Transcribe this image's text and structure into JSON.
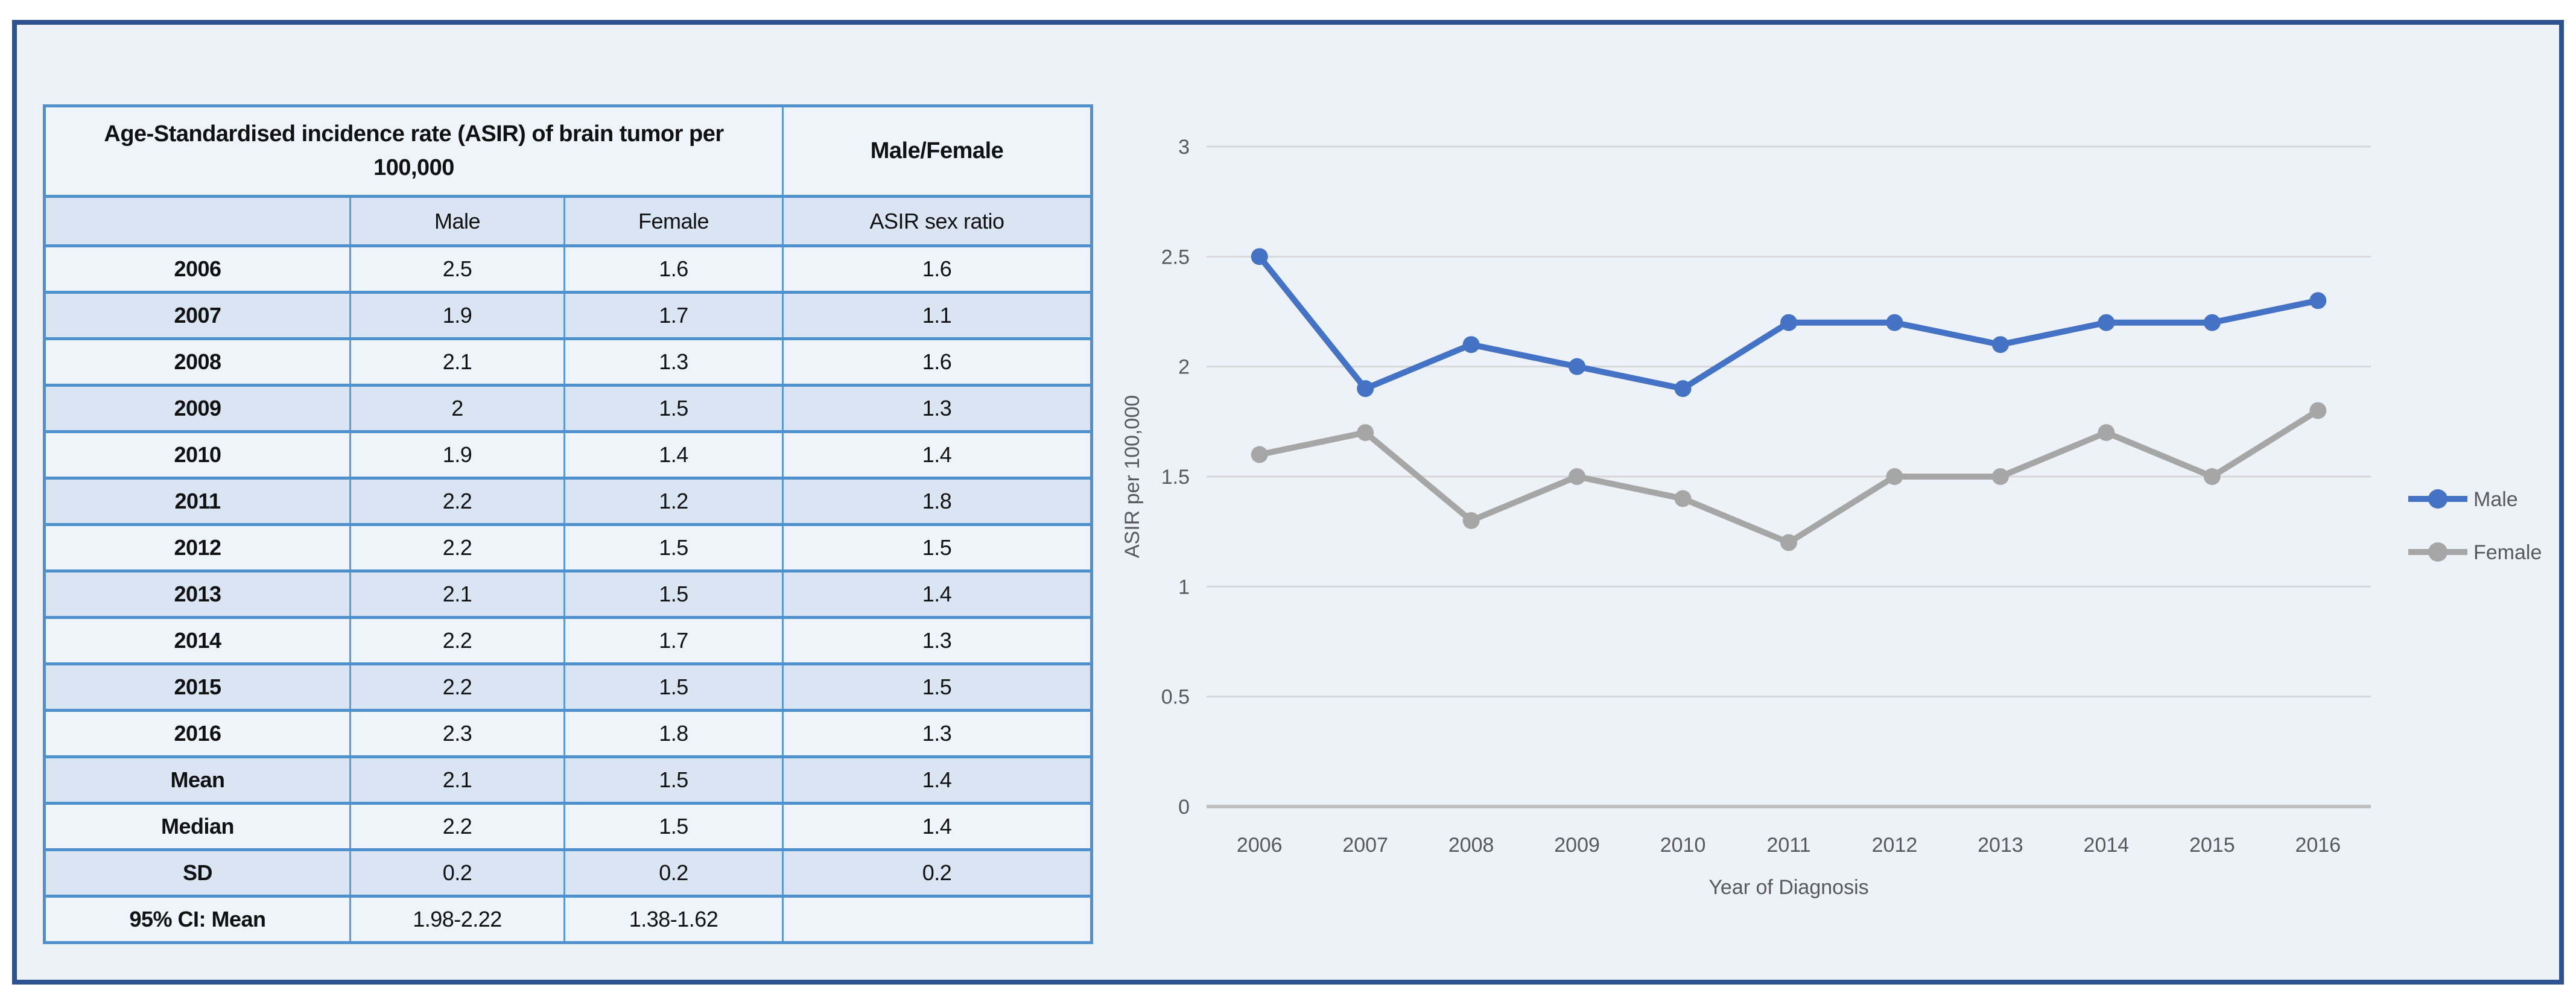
{
  "figure": {
    "page_bg": "#FFFFFF",
    "panel_bg": "#EDF2F9",
    "panel_border_color": "#2E5190",
    "table_border_color": "#4E91CE",
    "row_alt_bg": "#D9E5F3",
    "row_bg": "#EFF4FB",
    "text_muted": "#595959"
  },
  "table": {
    "title": "Age-Standardised incidence rate (ASIR) of brain tumor per 100,000",
    "title_col2": "Male/Female",
    "col_headers": [
      "",
      "Male",
      "Female",
      "ASIR sex ratio"
    ],
    "rows": [
      {
        "label": "2006",
        "male": "2.5",
        "female": "1.6",
        "ratio": "1.6"
      },
      {
        "label": "2007",
        "male": "1.9",
        "female": "1.7",
        "ratio": "1.1"
      },
      {
        "label": "2008",
        "male": "2.1",
        "female": "1.3",
        "ratio": "1.6"
      },
      {
        "label": "2009",
        "male": "2",
        "female": "1.5",
        "ratio": "1.3"
      },
      {
        "label": "2010",
        "male": "1.9",
        "female": "1.4",
        "ratio": "1.4"
      },
      {
        "label": "2011",
        "male": "2.2",
        "female": "1.2",
        "ratio": "1.8"
      },
      {
        "label": "2012",
        "male": "2.2",
        "female": "1.5",
        "ratio": "1.5"
      },
      {
        "label": "2013",
        "male": "2.1",
        "female": "1.5",
        "ratio": "1.4"
      },
      {
        "label": "2014",
        "male": "2.2",
        "female": "1.7",
        "ratio": "1.3"
      },
      {
        "label": "2015",
        "male": "2.2",
        "female": "1.5",
        "ratio": "1.5"
      },
      {
        "label": "2016",
        "male": "2.3",
        "female": "1.8",
        "ratio": "1.3"
      },
      {
        "label": "Mean",
        "male": "2.1",
        "female": "1.5",
        "ratio": "1.4"
      },
      {
        "label": "Median",
        "male": "2.2",
        "female": "1.5",
        "ratio": "1.4"
      },
      {
        "label": "SD",
        "male": "0.2",
        "female": "0.2",
        "ratio": "0.2"
      },
      {
        "label": "95% CI: Mean",
        "male": "1.98-2.22",
        "female": "1.38-1.62",
        "ratio": ""
      }
    ]
  },
  "chart_data": {
    "type": "line",
    "x": [
      "2006",
      "2007",
      "2008",
      "2009",
      "2010",
      "2011",
      "2012",
      "2013",
      "2014",
      "2015",
      "2016"
    ],
    "series": [
      {
        "name": "Male",
        "color": "#4472C4",
        "values": [
          2.5,
          1.9,
          2.1,
          2.0,
          1.9,
          2.2,
          2.2,
          2.1,
          2.2,
          2.2,
          2.3
        ]
      },
      {
        "name": "Female",
        "color": "#A6A6A6",
        "values": [
          1.6,
          1.7,
          1.3,
          1.5,
          1.4,
          1.2,
          1.5,
          1.5,
          1.7,
          1.5,
          1.8
        ]
      }
    ],
    "title": "",
    "xlabel": "Year of Diagnosis",
    "ylabel": "ASIR per 100,000",
    "ylim": [
      0,
      3
    ],
    "ytick_step": 0.5,
    "ytick_labels": [
      "0",
      "0.5",
      "1",
      "1.5",
      "2",
      "2.5",
      "3"
    ],
    "grid": true,
    "gridline_color": "#D8D8D8",
    "axis_line_color": "#BFBFBF",
    "tick_label_color": "#595959",
    "legend_position": "right",
    "marker": "circle"
  }
}
